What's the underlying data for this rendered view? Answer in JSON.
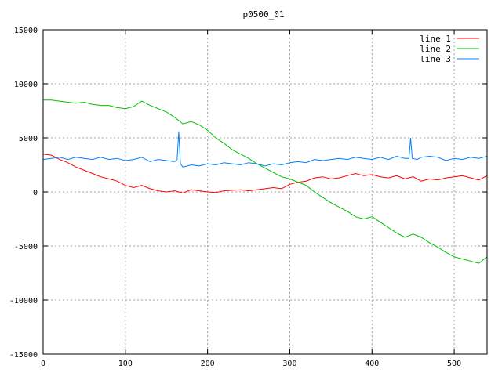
{
  "chart_data": {
    "type": "line",
    "title": "p0500_01",
    "xlabel": "",
    "ylabel": "",
    "xlim": [
      0,
      540
    ],
    "ylim": [
      -15000,
      15000
    ],
    "xticks": [
      0,
      100,
      200,
      300,
      400,
      500
    ],
    "yticks": [
      -15000,
      -10000,
      -5000,
      0,
      5000,
      10000,
      15000
    ],
    "grid": true,
    "legend_position": "top-right",
    "series": [
      {
        "name": "line 1",
        "color": "#ff0000",
        "x": [
          0,
          10,
          20,
          30,
          40,
          50,
          60,
          70,
          80,
          90,
          100,
          110,
          120,
          130,
          140,
          150,
          160,
          170,
          180,
          190,
          200,
          210,
          220,
          230,
          240,
          250,
          260,
          270,
          280,
          290,
          300,
          310,
          320,
          330,
          340,
          350,
          360,
          370,
          380,
          390,
          400,
          410,
          420,
          430,
          440,
          450,
          460,
          470,
          480,
          490,
          500,
          510,
          520,
          530,
          540
        ],
        "y": [
          3500,
          3400,
          3000,
          2700,
          2300,
          2000,
          1700,
          1400,
          1200,
          1000,
          600,
          400,
          600,
          300,
          100,
          0,
          100,
          -100,
          200,
          100,
          0,
          -50,
          100,
          150,
          200,
          100,
          200,
          300,
          400,
          300,
          700,
          900,
          1000,
          1300,
          1400,
          1200,
          1300,
          1500,
          1700,
          1500,
          1600,
          1400,
          1300,
          1500,
          1200,
          1400,
          1000,
          1200,
          1100,
          1300,
          1400,
          1500,
          1300,
          1100,
          1500
        ]
      },
      {
        "name": "line 2",
        "color": "#00c000",
        "x": [
          0,
          10,
          20,
          30,
          40,
          50,
          60,
          70,
          80,
          90,
          100,
          110,
          120,
          130,
          140,
          150,
          160,
          170,
          180,
          190,
          200,
          210,
          220,
          230,
          240,
          250,
          260,
          270,
          280,
          290,
          300,
          310,
          320,
          330,
          340,
          350,
          360,
          370,
          380,
          390,
          400,
          410,
          420,
          430,
          440,
          450,
          460,
          470,
          480,
          490,
          500,
          510,
          520,
          530,
          540
        ],
        "y": [
          8500,
          8500,
          8400,
          8300,
          8200,
          8300,
          8100,
          8000,
          8000,
          7800,
          7700,
          7900,
          8400,
          8000,
          7700,
          7400,
          6900,
          6300,
          6500,
          6200,
          5700,
          5000,
          4500,
          3900,
          3500,
          3100,
          2600,
          2200,
          1800,
          1400,
          1200,
          900,
          600,
          0,
          -500,
          -1000,
          -1400,
          -1800,
          -2300,
          -2500,
          -2300,
          -2800,
          -3300,
          -3800,
          -4200,
          -3900,
          -4200,
          -4700,
          -5100,
          -5600,
          -6000,
          -6200,
          -6400,
          -6600,
          -6000
        ]
      },
      {
        "name": "line 3",
        "color": "#0080ff",
        "x": [
          0,
          10,
          20,
          30,
          40,
          50,
          60,
          70,
          80,
          90,
          100,
          110,
          120,
          130,
          140,
          150,
          160,
          163,
          165,
          167,
          170,
          180,
          190,
          200,
          210,
          220,
          230,
          240,
          250,
          260,
          270,
          280,
          290,
          300,
          310,
          320,
          330,
          340,
          350,
          360,
          370,
          380,
          390,
          400,
          410,
          420,
          430,
          440,
          445,
          447,
          449,
          455,
          460,
          470,
          480,
          490,
          500,
          510,
          520,
          530,
          540
        ],
        "y": [
          3000,
          3100,
          3200,
          3000,
          3200,
          3100,
          3000,
          3200,
          3000,
          3100,
          2900,
          3000,
          3200,
          2800,
          3000,
          2900,
          2800,
          3000,
          5600,
          2600,
          2300,
          2500,
          2400,
          2600,
          2500,
          2700,
          2600,
          2500,
          2700,
          2600,
          2400,
          2600,
          2500,
          2700,
          2800,
          2700,
          3000,
          2900,
          3000,
          3100,
          3000,
          3200,
          3100,
          3000,
          3200,
          3000,
          3300,
          3100,
          3100,
          5000,
          3100,
          3000,
          3200,
          3300,
          3200,
          2900,
          3100,
          3000,
          3200,
          3100,
          3300
        ]
      }
    ]
  }
}
